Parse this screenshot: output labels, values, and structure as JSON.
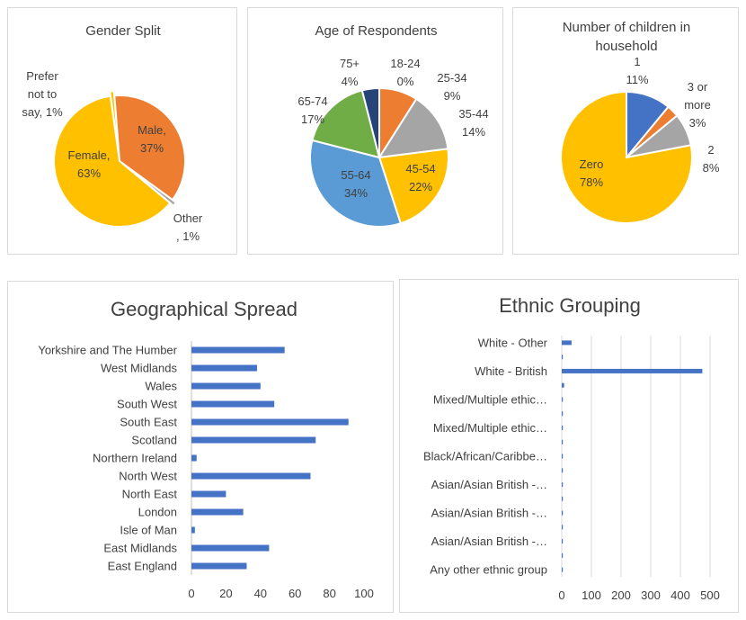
{
  "colors": {
    "blue": "#4472C4",
    "orange": "#ED7D31",
    "gray": "#A5A5A5",
    "yellow": "#FFC000",
    "lightblue": "#5B9BD5",
    "green": "#70AD47",
    "navy": "#264478",
    "bar": "#4472C4",
    "grid": "#d9d9d9",
    "border": "#d9d9d9"
  },
  "chart_data": [
    {
      "type": "pie",
      "title": "Gender Split",
      "slices": [
        {
          "label": "Prefer not to say",
          "value": 1,
          "display": [
            "Prefer",
            "not to",
            "say, 1%"
          ],
          "color": "#FFC000"
        },
        {
          "label": "Male",
          "value": 37,
          "display": [
            "Male,",
            "37%"
          ],
          "color": "#ED7D31"
        },
        {
          "label": "Other",
          "value": 1,
          "display": [
            "Other",
            ", 1%"
          ],
          "color": "#A5A5A5"
        },
        {
          "label": "Female",
          "value": 63,
          "display": [
            "Female,",
            "63%"
          ],
          "color": "#FFC000"
        }
      ]
    },
    {
      "type": "pie",
      "title": "Age of Respondents",
      "slices": [
        {
          "label": "18-24",
          "value": 0,
          "display": [
            "18-24",
            "0%"
          ],
          "color": "#4472C4"
        },
        {
          "label": "25-34",
          "value": 9,
          "display": [
            "25-34",
            "9%"
          ],
          "color": "#ED7D31"
        },
        {
          "label": "35-44",
          "value": 14,
          "display": [
            "35-44",
            "14%"
          ],
          "color": "#A5A5A5"
        },
        {
          "label": "45-54",
          "value": 22,
          "display": [
            "45-54",
            "22%"
          ],
          "color": "#FFC000"
        },
        {
          "label": "55-64",
          "value": 34,
          "display": [
            "55-64",
            "34%"
          ],
          "color": "#5B9BD5"
        },
        {
          "label": "65-74",
          "value": 17,
          "display": [
            "65-74",
            "17%"
          ],
          "color": "#70AD47"
        },
        {
          "label": "75+",
          "value": 4,
          "display": [
            "75+",
            "4%"
          ],
          "color": "#264478"
        }
      ]
    },
    {
      "type": "pie",
      "title": "Number of children in household",
      "title_lines": [
        "Number of children in",
        "household"
      ],
      "slices": [
        {
          "label": "1",
          "value": 11,
          "display": [
            "1",
            "11%"
          ],
          "color": "#4472C4"
        },
        {
          "label": "3 or more",
          "value": 3,
          "display": [
            "3 or",
            "more",
            "3%"
          ],
          "color": "#ED7D31"
        },
        {
          "label": "2",
          "value": 8,
          "display": [
            "2",
            "8%"
          ],
          "color": "#A5A5A5"
        },
        {
          "label": "Zero",
          "value": 78,
          "display": [
            "Zero",
            "78%"
          ],
          "color": "#FFC000"
        }
      ]
    },
    {
      "type": "bar",
      "orientation": "horizontal",
      "title": "Geographical Spread",
      "categories": [
        "Yorkshire and The Humber",
        "West Midlands",
        "Wales",
        "South West",
        "South East",
        "Scotland",
        "Northern Ireland",
        "North West",
        "North East",
        "London",
        "Isle of Man",
        "East Midlands",
        "East England"
      ],
      "values": [
        54,
        38,
        40,
        48,
        91,
        72,
        3,
        69,
        20,
        30,
        2,
        45,
        32
      ],
      "xlim": [
        0,
        100
      ],
      "xticks": [
        0,
        20,
        40,
        60,
        80,
        100
      ],
      "grid": false
    },
    {
      "type": "bar",
      "orientation": "horizontal",
      "title": "Ethnic Grouping",
      "rows": [
        {
          "label": "White - Other",
          "value": 33
        },
        {
          "label": "",
          "value": 1
        },
        {
          "label": "White - British",
          "value": 474
        },
        {
          "label": "",
          "value": 8
        },
        {
          "label": "Mixed/Multiple ethic…",
          "value": 2
        },
        {
          "label": "",
          "value": 1
        },
        {
          "label": "Mixed/Multiple ethic…",
          "value": 1
        },
        {
          "label": "",
          "value": 1
        },
        {
          "label": "Black/African/Caribbe…",
          "value": 2
        },
        {
          "label": "",
          "value": 1
        },
        {
          "label": "Asian/Asian British -…",
          "value": 1
        },
        {
          "label": "",
          "value": 1
        },
        {
          "label": "Asian/Asian British -…",
          "value": 1
        },
        {
          "label": "",
          "value": 1
        },
        {
          "label": "Asian/Asian British -…",
          "value": 1
        },
        {
          "label": "",
          "value": 1
        },
        {
          "label": "Any other ethnic group",
          "value": 1
        }
      ],
      "xlim": [
        0,
        500
      ],
      "xticks": [
        0,
        100,
        200,
        300,
        400,
        500
      ],
      "grid": true
    }
  ]
}
